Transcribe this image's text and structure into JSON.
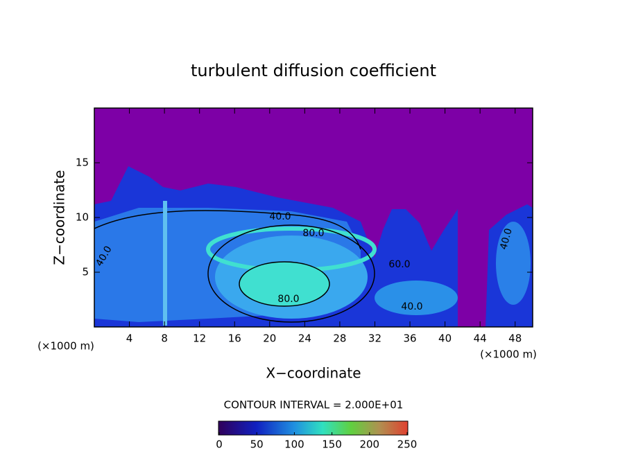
{
  "chart_data": {
    "type": "contour",
    "title": "turbulent diffusion coefficient",
    "x_label": "X−coordinate",
    "y_label": "Z−coordinate",
    "x_unit": "(×1000 m)",
    "xlim": [
      0,
      50
    ],
    "xticks": [
      4,
      8,
      12,
      16,
      20,
      24,
      28,
      32,
      36,
      40,
      44,
      48
    ],
    "ylim": [
      0,
      20
    ],
    "yticks": [
      5,
      10,
      15
    ],
    "contour_interval": "CONTOUR INTERVAL = 2.000E+01",
    "annotations": [
      "40.0",
      "80.0",
      "40.0",
      "60.0",
      "80.0",
      "40.0",
      "40.0"
    ],
    "colorbar": {
      "lim": [
        0,
        250
      ],
      "ticks": [
        0,
        50,
        100,
        150,
        200,
        250
      ]
    }
  }
}
